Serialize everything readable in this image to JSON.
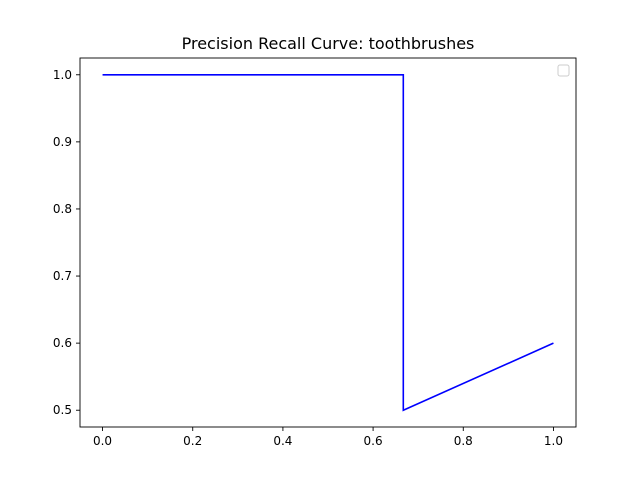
{
  "chart_data": {
    "type": "line",
    "title": "Precision Recall Curve: toothbrushes",
    "xlabel": "",
    "ylabel": "",
    "xlim": [
      -0.05,
      1.05
    ],
    "ylim": [
      0.475,
      1.025
    ],
    "xticks": [
      0.0,
      0.2,
      0.4,
      0.6,
      0.8,
      1.0
    ],
    "xtick_labels": [
      "0.0",
      "0.2",
      "0.4",
      "0.6",
      "0.8",
      "1.0"
    ],
    "yticks": [
      0.5,
      0.6,
      0.7,
      0.8,
      0.9,
      1.0
    ],
    "ytick_labels": [
      "0.5",
      "0.6",
      "0.7",
      "0.8",
      "0.9",
      "1.0"
    ],
    "grid": false,
    "legend": {
      "placement": "top-right",
      "entries": []
    },
    "series": [
      {
        "color": "#0000ff",
        "x": [
          0.0,
          0.667,
          0.667,
          1.0
        ],
        "y": [
          1.0,
          1.0,
          0.5,
          0.6
        ]
      }
    ]
  }
}
